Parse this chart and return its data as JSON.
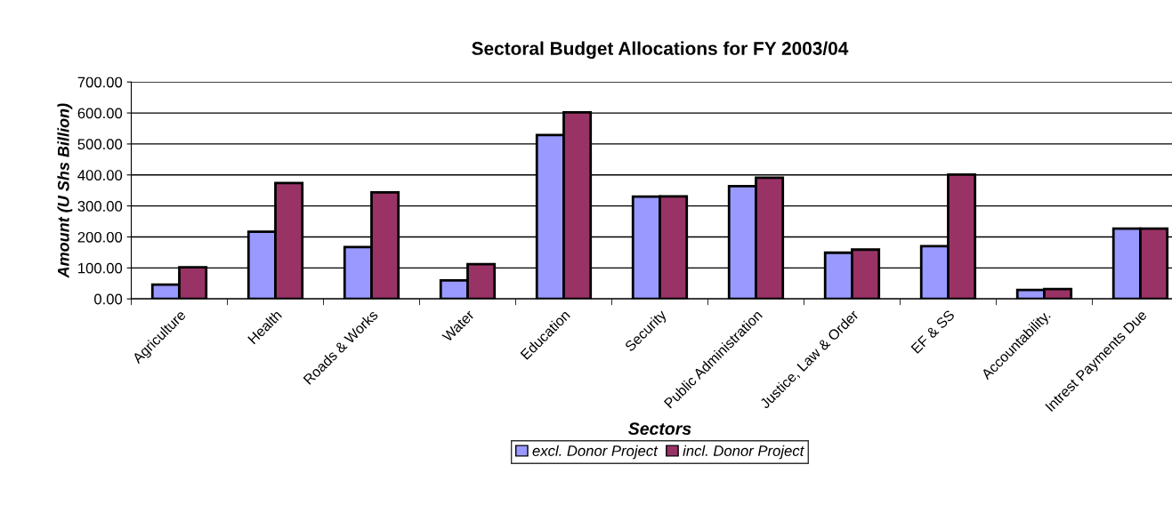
{
  "chart_data": {
    "type": "bar",
    "title": "Sectoral Budget Allocations for FY 2003/04",
    "xlabel": "Sectors",
    "ylabel": "Amount (U Shs Billion)",
    "categories": [
      "Agriculture",
      "Health",
      "Roads & Works",
      "Water",
      "Education",
      "Security",
      "Public Administration",
      "Justice, Law & Order",
      "EF & SS",
      "Accountability.",
      "Intrest Payments Due"
    ],
    "series": [
      {
        "name": "excl. Donor Project",
        "color": "#9999ff",
        "values": [
          46,
          217,
          167,
          60,
          529,
          330,
          364,
          149,
          170,
          29,
          227
        ]
      },
      {
        "name": "incl. Donor Project",
        "color": "#993366",
        "values": [
          102,
          374,
          344,
          112,
          602,
          331,
          391,
          159,
          401,
          32,
          227
        ]
      }
    ],
    "ylim": [
      0,
      700
    ],
    "yticks": [
      {
        "value": 0,
        "label": "0.00"
      },
      {
        "value": 100,
        "label": "100.00"
      },
      {
        "value": 200,
        "label": "200.00"
      },
      {
        "value": 300,
        "label": "300.00"
      },
      {
        "value": 400,
        "label": "400.00"
      },
      {
        "value": 500,
        "label": "500.00"
      },
      {
        "value": 600,
        "label": "600.00"
      },
      {
        "value": 700,
        "label": "700.00"
      }
    ],
    "grid": "y",
    "legend": "bottom"
  }
}
